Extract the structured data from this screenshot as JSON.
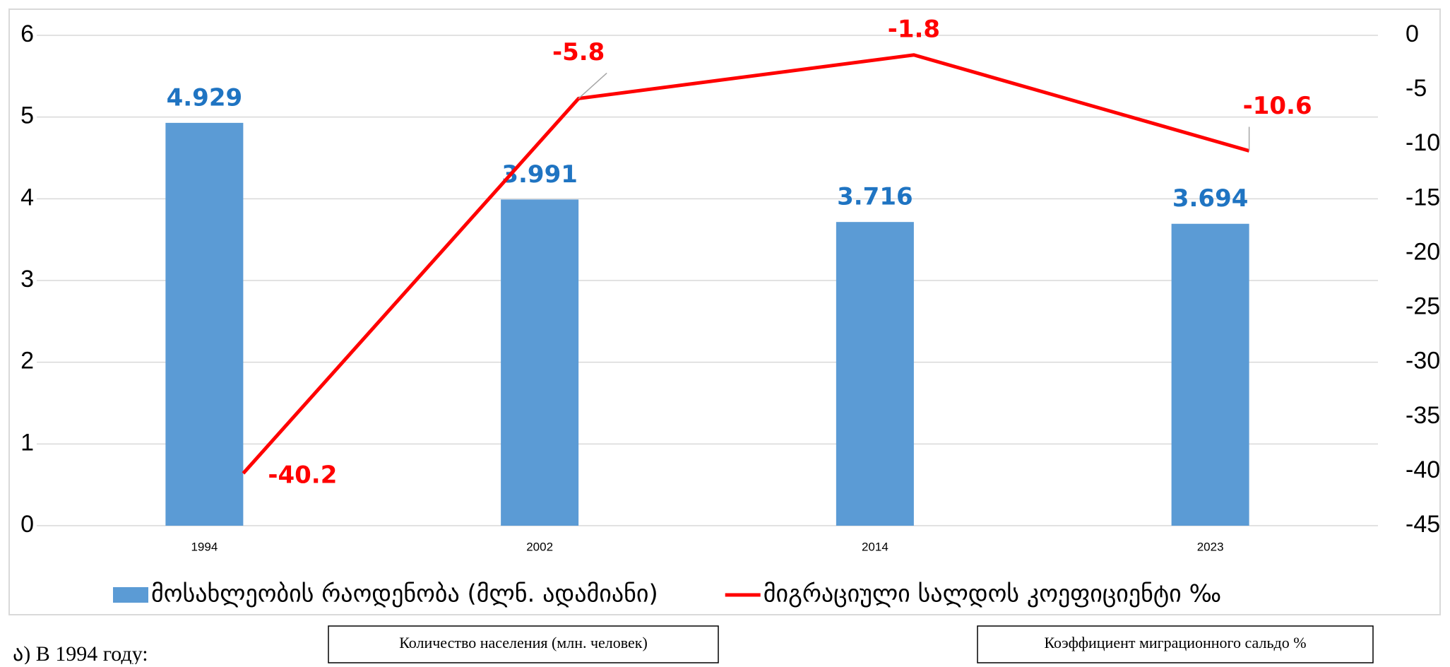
{
  "chart_data": {
    "type": "bar_line",
    "categories": [
      "1994",
      "2002",
      "2014",
      "2023"
    ],
    "series": [
      {
        "name": "მოსახლეობის რაოდენობა (მლნ. ადამიანი)",
        "type": "bar",
        "color": "#5b9bd5",
        "values": [
          4.929,
          3.991,
          3.716,
          3.694
        ]
      },
      {
        "name": "მიგრაციული სალდოს კოეფიციენტი ‰",
        "type": "line",
        "axis": "y2",
        "color": "#ff0000",
        "values": [
          -40.2,
          -5.8,
          -1.8,
          -10.6
        ]
      }
    ],
    "ylim": [
      0,
      6
    ],
    "yticks": [
      0,
      1,
      2,
      3,
      4,
      5,
      6
    ],
    "y2lim": [
      -45,
      0
    ],
    "y2ticks": [
      0,
      -5,
      -10,
      -15,
      -20,
      -25,
      -30,
      -35,
      -40,
      -45
    ],
    "grid": true,
    "legend": "bottom",
    "annotations": [
      "Количество населения (млн. человек)",
      "Коэффициент миграционного сальдо %",
      "ა) В 1994 году:"
    ]
  }
}
